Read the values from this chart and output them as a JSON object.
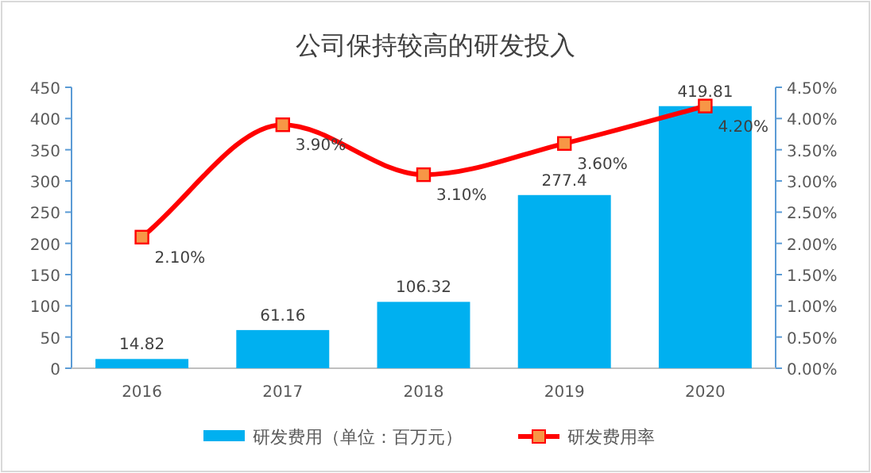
{
  "chart_data": {
    "type": "bar",
    "title": "公司保持较高的研发投入",
    "categories": [
      "2016",
      "2017",
      "2018",
      "2019",
      "2020"
    ],
    "series": [
      {
        "name": "研发费用（单位：百万元）",
        "color": "#00b0f0",
        "values": [
          14.82,
          61.16,
          106.32,
          277.4,
          419.81
        ],
        "value_labels": [
          "14.82",
          "61.16",
          "106.32",
          "277.4",
          "419.81"
        ]
      },
      {
        "name": "研发费用率",
        "type": "line",
        "axis": "y2",
        "color": "#ff0000",
        "marker": "square",
        "values": [
          2.1,
          3.9,
          3.1,
          3.6,
          4.2
        ],
        "value_labels": [
          "2.10%",
          "3.90%",
          "3.10%",
          "3.60%",
          "4.20%"
        ]
      }
    ],
    "ylim": [
      0,
      450
    ],
    "yticks": [
      0,
      50,
      100,
      150,
      200,
      250,
      300,
      350,
      400,
      450
    ],
    "y2lim": [
      0,
      4.5
    ],
    "y2ticks": [
      {
        "value": 0,
        "label": "0.00%"
      },
      {
        "value": 0.5,
        "label": "0.50%"
      },
      {
        "value": 1,
        "label": "1.00%"
      },
      {
        "value": 1.5,
        "label": "1.50%"
      },
      {
        "value": 2,
        "label": "2.00%"
      },
      {
        "value": 2.5,
        "label": "2.50%"
      },
      {
        "value": 3,
        "label": "3.00%"
      },
      {
        "value": 3.5,
        "label": "3.50%"
      },
      {
        "value": 4,
        "label": "4.00%"
      },
      {
        "value": 4.5,
        "label": "4.50%"
      }
    ],
    "grid": false,
    "legend": "bottom"
  }
}
